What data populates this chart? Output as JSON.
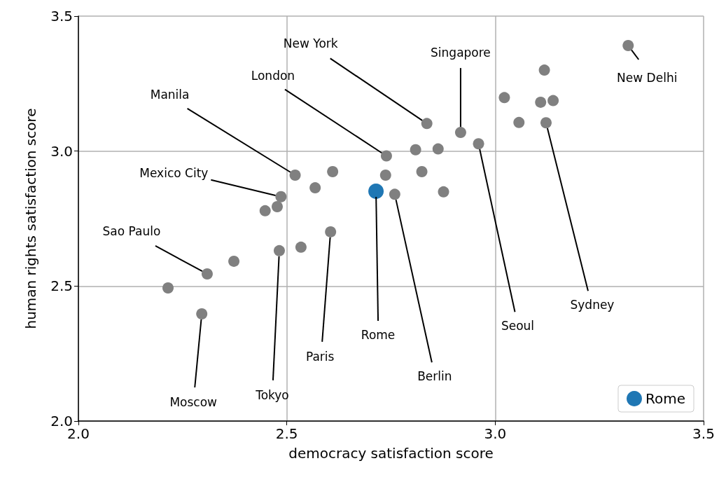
{
  "chart_data": {
    "type": "scatter",
    "xlabel": "democracy satisfaction score",
    "ylabel": "human rights satisfaction score",
    "series": [
      {
        "color": "#808080",
        "x": [
          2.296,
          2.309,
          2.215,
          2.373,
          2.482,
          2.534,
          2.605,
          2.448,
          2.477,
          2.486,
          2.52,
          2.568,
          2.61,
          2.739,
          2.737,
          2.759,
          2.809,
          2.836,
          2.917,
          2.863,
          2.824,
          2.876,
          2.96,
          3.022,
          3.057,
          3.118,
          3.109,
          3.139,
          3.122,
          3.319
        ],
        "values": [
          2.397,
          2.545,
          2.493,
          2.592,
          2.631,
          2.644,
          2.701,
          2.779,
          2.794,
          2.831,
          2.911,
          2.864,
          2.924,
          2.982,
          2.911,
          2.84,
          3.005,
          3.102,
          3.069,
          3.008,
          2.924,
          2.849,
          3.027,
          3.198,
          3.106,
          3.3,
          3.181,
          3.187,
          3.105,
          3.391
        ]
      },
      {
        "name": "Rome",
        "color": "#1f77b4",
        "x": [
          2.714
        ],
        "values": [
          2.851
        ]
      }
    ],
    "annotations": [
      {
        "text": "New York",
        "x": 2.836,
        "y": 3.102
      },
      {
        "text": "Singapore",
        "x": 2.917,
        "y": 3.069
      },
      {
        "text": "London",
        "x": 2.739,
        "y": 2.982
      },
      {
        "text": "Manila",
        "x": 2.52,
        "y": 2.911
      },
      {
        "text": "Mexico City",
        "x": 2.486,
        "y": 2.831
      },
      {
        "text": "Sao Paulo",
        "x": 2.309,
        "y": 2.545
      },
      {
        "text": "Moscow",
        "x": 2.296,
        "y": 2.397
      },
      {
        "text": "Tokyo",
        "x": 2.482,
        "y": 2.631
      },
      {
        "text": "Paris",
        "x": 2.605,
        "y": 2.701
      },
      {
        "text": "Rome",
        "x": 2.714,
        "y": 2.851
      },
      {
        "text": "Berlin",
        "x": 2.759,
        "y": 2.84
      },
      {
        "text": "Seoul",
        "x": 2.96,
        "y": 3.027
      },
      {
        "text": "Sydney",
        "x": 3.122,
        "y": 3.105
      },
      {
        "text": "New Delhi",
        "x": 3.319,
        "y": 3.391
      }
    ],
    "xlim": [
      2,
      3.5
    ],
    "ylim": [
      2,
      3.5
    ],
    "xticks": [
      {
        "value": 2,
        "label": "2.0"
      },
      {
        "value": 2.5,
        "label": "2.5"
      },
      {
        "value": 3,
        "label": "3.0"
      },
      {
        "value": 3.5,
        "label": "3.5"
      }
    ],
    "yticks": [
      {
        "value": 2,
        "label": "2.0"
      },
      {
        "value": 2.5,
        "label": "2.5"
      },
      {
        "value": 3,
        "label": "3.0"
      },
      {
        "value": 3.5,
        "label": "3.5"
      }
    ],
    "grid": true,
    "legend": "bottom right",
    "marker": "circle"
  }
}
